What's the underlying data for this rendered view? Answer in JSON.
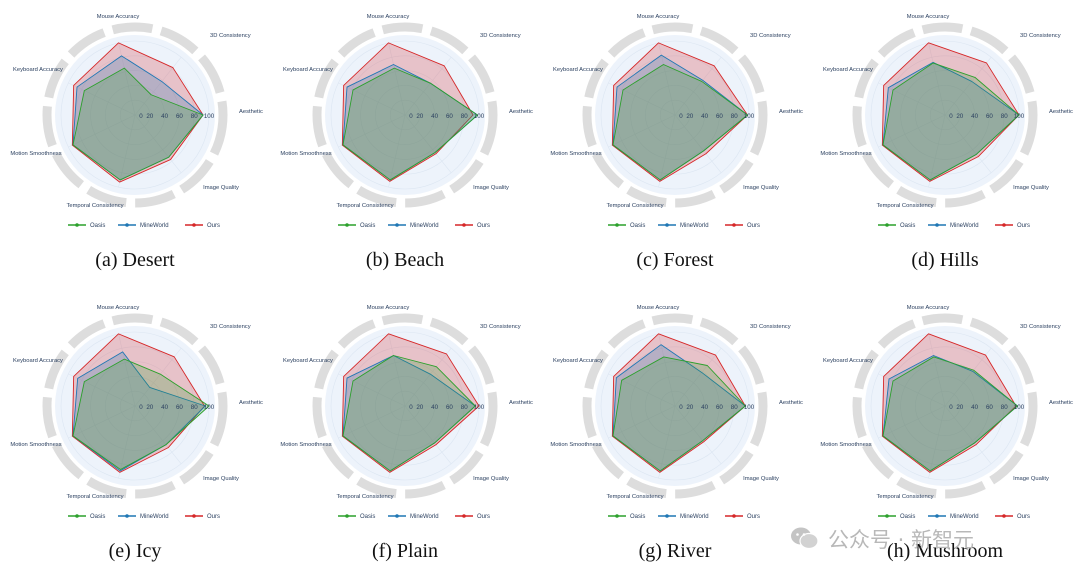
{
  "watermark": {
    "text": "公众号 · 新智元",
    "icon": "wechat-icon"
  },
  "colors": {
    "Oasis": "#2ca02c",
    "MineWorld": "#1f77b4",
    "Ours": "#d62728",
    "ring": "#dddddd",
    "bg_circle": "#edf3fb",
    "text": "#2a3f5f"
  },
  "chart_data": [
    {
      "type": "radar",
      "caption": "(a) Desert",
      "axes": [
        "Aesthetic",
        "3D Consistency",
        "Mouse Accuracy",
        "Keyboard Accuracy",
        "Motion Smoothness",
        "Temporal Consistency",
        "Image Quality"
      ],
      "radial_ticks": [
        "0",
        "20",
        "40",
        "60",
        "80",
        "100"
      ],
      "rlim": [
        0,
        100
      ],
      "series": [
        {
          "name": "Oasis",
          "values": [
            92,
            35,
            65,
            76,
            93,
            90,
            73
          ]
        },
        {
          "name": "MineWorld",
          "values": [
            92,
            58,
            82,
            87,
            93,
            90,
            73
          ]
        },
        {
          "name": "Ours",
          "values": [
            92,
            82,
            100,
            92,
            94,
            93,
            77
          ]
        }
      ]
    },
    {
      "type": "radar",
      "caption": "(b) Beach",
      "axes": [
        "Aesthetic",
        "3D Consistency",
        "Mouse Accuracy",
        "Keyboard Accuracy",
        "Motion Smoothness",
        "Temporal Consistency",
        "Image Quality"
      ],
      "radial_ticks": [
        "0",
        "20",
        "40",
        "60",
        "80",
        "100"
      ],
      "rlim": [
        0,
        100
      ],
      "series": [
        {
          "name": "Oasis",
          "values": [
            98,
            55,
            65,
            78,
            93,
            90,
            65
          ]
        },
        {
          "name": "MineWorld",
          "values": [
            98,
            55,
            70,
            87,
            93,
            90,
            65
          ]
        },
        {
          "name": "Ours",
          "values": [
            92,
            85,
            100,
            92,
            94,
            92,
            67
          ]
        }
      ]
    },
    {
      "type": "radar",
      "caption": "(c) Forest",
      "axes": [
        "Aesthetic",
        "3D Consistency",
        "Mouse Accuracy",
        "Keyboard Accuracy",
        "Motion Smoothness",
        "Temporal Consistency",
        "Image Quality"
      ],
      "radial_ticks": [
        "0",
        "20",
        "40",
        "60",
        "80",
        "100"
      ],
      "rlim": [
        0,
        100
      ],
      "series": [
        {
          "name": "Oasis",
          "values": [
            98,
            58,
            70,
            78,
            93,
            90,
            62
          ]
        },
        {
          "name": "MineWorld",
          "values": [
            98,
            60,
            83,
            87,
            93,
            90,
            62
          ]
        },
        {
          "name": "Ours",
          "values": [
            98,
            85,
            100,
            92,
            94,
            92,
            67
          ]
        }
      ]
    },
    {
      "type": "radar",
      "caption": "(d) Hills",
      "axes": [
        "Aesthetic",
        "3D Consistency",
        "Mouse Accuracy",
        "Keyboard Accuracy",
        "Motion Smoothness",
        "Temporal Consistency",
        "Image Quality"
      ],
      "radial_ticks": [
        "0",
        "20",
        "40",
        "60",
        "80",
        "100"
      ],
      "rlim": [
        0,
        100
      ],
      "series": [
        {
          "name": "Oasis",
          "values": [
            100,
            65,
            72,
            78,
            93,
            90,
            68
          ]
        },
        {
          "name": "MineWorld",
          "values": [
            100,
            58,
            73,
            85,
            93,
            90,
            68
          ]
        },
        {
          "name": "Ours",
          "values": [
            100,
            90,
            100,
            92,
            94,
            92,
            72
          ]
        }
      ]
    },
    {
      "type": "radar",
      "caption": "(e) Icy",
      "axes": [
        "Aesthetic",
        "3D Consistency",
        "Mouse Accuracy",
        "Keyboard Accuracy",
        "Motion Smoothness",
        "Temporal Consistency",
        "Image Quality"
      ],
      "radial_ticks": [
        "0",
        "20",
        "40",
        "60",
        "80",
        "100"
      ],
      "rlim": [
        0,
        100
      ],
      "series": [
        {
          "name": "Oasis",
          "values": [
            100,
            55,
            65,
            76,
            93,
            88,
            67
          ]
        },
        {
          "name": "MineWorld",
          "values": [
            95,
            32,
            75,
            86,
            93,
            90,
            67
          ]
        },
        {
          "name": "Ours",
          "values": [
            94,
            85,
            100,
            92,
            94,
            92,
            72
          ]
        }
      ]
    },
    {
      "type": "radar",
      "caption": "(f) Plain",
      "axes": [
        "Aesthetic",
        "3D Consistency",
        "Mouse Accuracy",
        "Keyboard Accuracy",
        "Motion Smoothness",
        "Temporal Consistency",
        "Image Quality"
      ],
      "radial_ticks": [
        "0",
        "20",
        "40",
        "60",
        "80",
        "100"
      ],
      "rlim": [
        0,
        100
      ],
      "series": [
        {
          "name": "Oasis",
          "values": [
            95,
            68,
            70,
            78,
            93,
            90,
            64
          ]
        },
        {
          "name": "MineWorld",
          "values": [
            95,
            55,
            70,
            87,
            93,
            90,
            64
          ]
        },
        {
          "name": "Ours",
          "values": [
            100,
            90,
            100,
            92,
            94,
            92,
            67
          ]
        }
      ]
    },
    {
      "type": "radar",
      "caption": "(g) River",
      "axes": [
        "Aesthetic",
        "3D Consistency",
        "Mouse Accuracy",
        "Keyboard Accuracy",
        "Motion Smoothness",
        "Temporal Consistency",
        "Image Quality"
      ],
      "radial_ticks": [
        "0",
        "20",
        "40",
        "60",
        "80",
        "100"
      ],
      "rlim": [
        0,
        100
      ],
      "series": [
        {
          "name": "Oasis",
          "values": [
            95,
            70,
            68,
            80,
            93,
            90,
            60
          ]
        },
        {
          "name": "MineWorld",
          "values": [
            95,
            58,
            85,
            88,
            93,
            90,
            60
          ]
        },
        {
          "name": "Ours",
          "values": [
            95,
            88,
            100,
            92,
            94,
            92,
            62
          ]
        }
      ]
    },
    {
      "type": "radar",
      "caption": "(h) Mushroom",
      "axes": [
        "Aesthetic",
        "3D Consistency",
        "Mouse Accuracy",
        "Keyboard Accuracy",
        "Motion Smoothness",
        "Temporal Consistency",
        "Image Quality"
      ],
      "radial_ticks": [
        "0",
        "20",
        "40",
        "60",
        "80",
        "100"
      ],
      "rlim": [
        0,
        100
      ],
      "series": [
        {
          "name": "Oasis",
          "values": [
            98,
            62,
            68,
            78,
            93,
            90,
            64
          ]
        },
        {
          "name": "MineWorld",
          "values": [
            98,
            60,
            70,
            84,
            93,
            90,
            64
          ]
        },
        {
          "name": "Ours",
          "values": [
            96,
            88,
            100,
            92,
            94,
            92,
            67
          ]
        }
      ]
    }
  ]
}
